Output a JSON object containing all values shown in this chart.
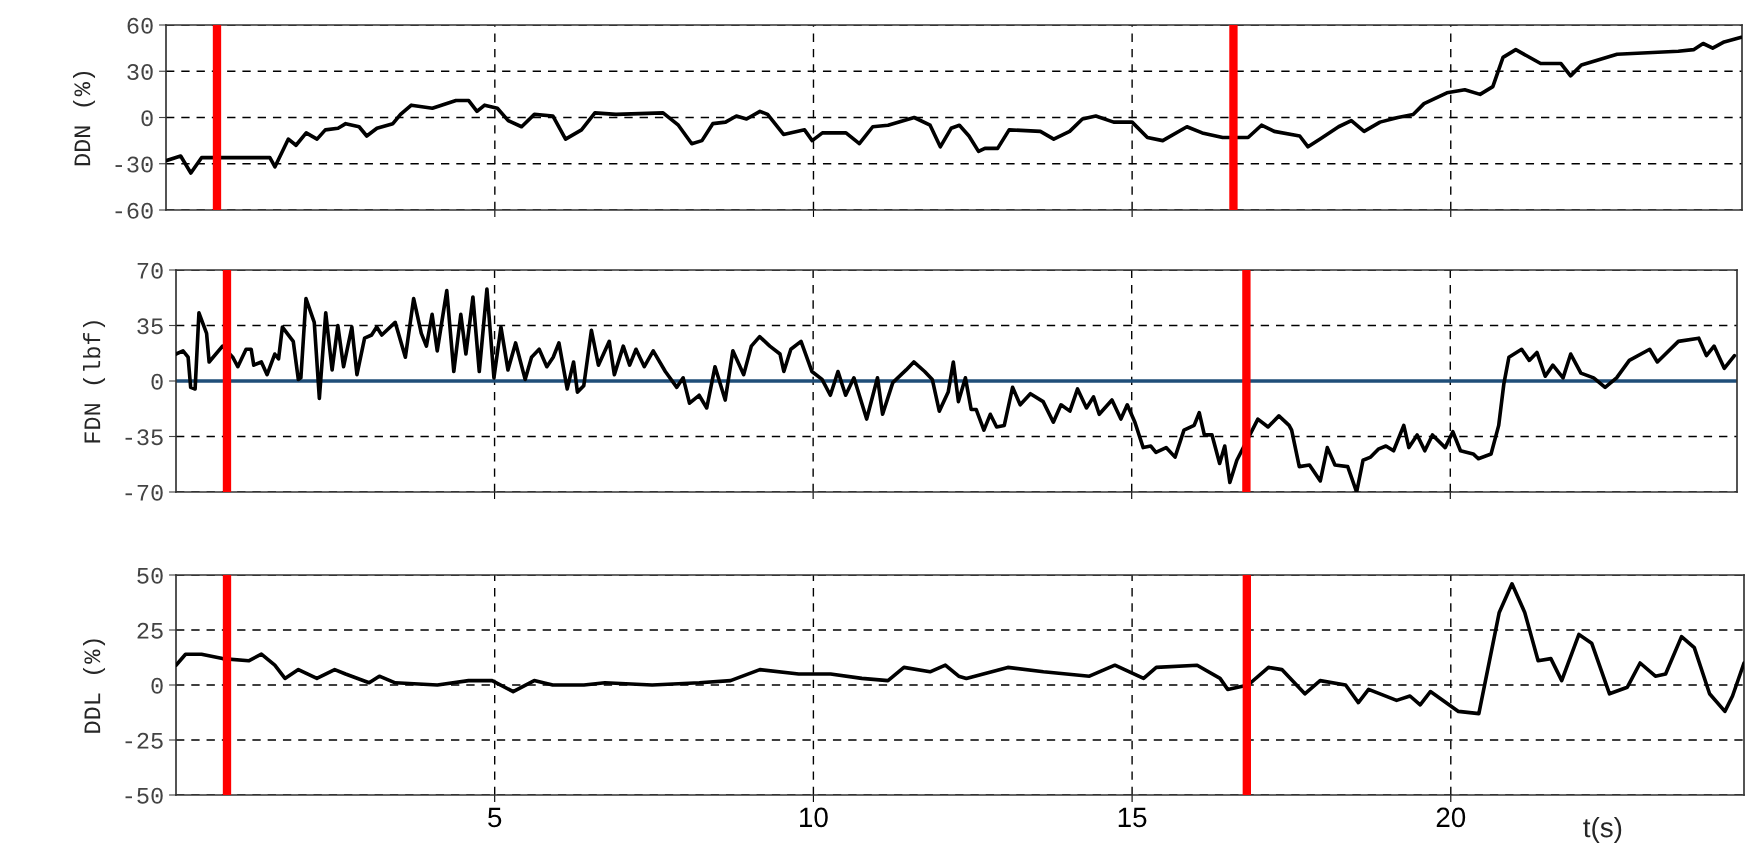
{
  "chart_data": [
    {
      "type": "line",
      "ylabel": "DDN (%)",
      "xlim": [
        -0.16,
        24.57
      ],
      "xticks": [
        5,
        10,
        15,
        20
      ],
      "ylim": [
        -60,
        60
      ],
      "yticks": [
        -60,
        -30,
        0,
        30,
        60
      ],
      "grid": true,
      "tick_labels": "y",
      "legend": false,
      "ref_lines": [
        {
          "axis": "x",
          "value": 0.64,
          "color": "#ff0000"
        },
        {
          "axis": "x",
          "value": 16.59,
          "color": "#ff0000"
        }
      ],
      "series": [
        {
          "color": "#000000",
          "x": [
            -0.16,
            0.07,
            0.23,
            0.4,
            0.89,
            1.47,
            1.55,
            1.76,
            1.88,
            2.04,
            2.21,
            2.34,
            2.54,
            2.66,
            2.87,
            2.99,
            3.15,
            3.4,
            3.52,
            3.69,
            4.02,
            4.39,
            4.59,
            4.72,
            4.84,
            5.04,
            5.21,
            5.42,
            5.62,
            5.91,
            6.11,
            6.36,
            6.57,
            6.9,
            7.64,
            7.88,
            8.09,
            8.25,
            8.42,
            8.62,
            8.79,
            8.95,
            9.16,
            9.28,
            9.53,
            9.86,
            9.98,
            10.14,
            10.51,
            10.72,
            10.93,
            11.17,
            11.58,
            11.83,
            11.99,
            12.16,
            12.29,
            12.44,
            12.59,
            12.69,
            12.89,
            13.07,
            13.56,
            13.77,
            14.02,
            14.22,
            14.43,
            14.71,
            15.0,
            15.24,
            15.48,
            15.86,
            16.1,
            16.42,
            16.82,
            17.03,
            17.23,
            17.63,
            17.76,
            17.95,
            18.24,
            18.44,
            18.64,
            18.89,
            19.17,
            19.41,
            19.58,
            19.94,
            20.22,
            20.46,
            20.66,
            20.82,
            21.02,
            21.41,
            21.73,
            21.88,
            22.05,
            22.61,
            23.57,
            23.81,
            23.96,
            24.11,
            24.29,
            24.56
          ],
          "values": [
            -28,
            -25,
            -36,
            -26,
            -26,
            -26,
            -32,
            -14,
            -18,
            -10,
            -14,
            -8,
            -7,
            -4,
            -6,
            -12,
            -7,
            -4,
            2,
            8,
            6,
            11,
            11,
            4,
            8,
            6,
            -2,
            -6,
            2,
            1,
            -14,
            -8,
            3,
            2,
            3,
            -5,
            -17,
            -15,
            -4,
            -3,
            1,
            -1,
            4,
            2,
            -11,
            -8,
            -15,
            -10,
            -10,
            -17,
            -6,
            -5,
            0,
            -5,
            -19,
            -7,
            -5,
            -12,
            -22,
            -20,
            -20,
            -8,
            -9,
            -14,
            -9,
            -1,
            1,
            -3,
            -3,
            -13,
            -15,
            -6,
            -10,
            -13,
            -13,
            -5,
            -9,
            -12,
            -19,
            -14,
            -6,
            -2,
            -9,
            -3,
            0,
            2,
            9,
            16,
            18,
            15,
            20,
            39,
            44,
            35,
            35,
            27,
            34,
            41,
            43,
            44,
            48,
            45,
            49,
            52
          ]
        }
      ]
    },
    {
      "type": "line",
      "ylabel": "FDN (lbf)",
      "xlim": [
        0,
        24.5
      ],
      "xticks": [
        5,
        10,
        15,
        20
      ],
      "ylim": [
        -70,
        70
      ],
      "yticks": [
        -70,
        -35,
        0,
        35,
        70
      ],
      "grid": true,
      "tick_labels": "y",
      "legend": false,
      "ref_lines": [
        {
          "axis": "y",
          "value": 0,
          "color": "#1f4e79"
        },
        {
          "axis": "x",
          "value": 0.8,
          "color": "#ff0000"
        },
        {
          "axis": "x",
          "value": 16.8,
          "color": "#ff0000"
        }
      ],
      "series": [
        {
          "color": "#000000",
          "x": [
            0,
            0.11,
            0.19,
            0.23,
            0.3,
            0.36,
            0.48,
            0.52,
            0.73,
            0.89,
            0.97,
            1.1,
            1.18,
            1.22,
            1.34,
            1.43,
            1.55,
            1.61,
            1.67,
            1.84,
            1.92,
            1.96,
            2.04,
            2.17,
            2.25,
            2.35,
            2.45,
            2.54,
            2.63,
            2.76,
            2.84,
            2.96,
            3.07,
            3.15,
            3.23,
            3.44,
            3.6,
            3.73,
            3.85,
            3.93,
            4.02,
            4.1,
            4.25,
            4.36,
            4.47,
            4.55,
            4.66,
            4.76,
            4.88,
            4.99,
            5.1,
            5.21,
            5.33,
            5.48,
            5.58,
            5.7,
            5.82,
            5.92,
            6.01,
            6.14,
            6.24,
            6.3,
            6.4,
            6.52,
            6.63,
            6.8,
            6.88,
            7.02,
            7.12,
            7.22,
            7.35,
            7.49,
            7.68,
            7.86,
            7.96,
            8.06,
            8.21,
            8.33,
            8.46,
            8.62,
            8.74,
            8.91,
            9.03,
            9.16,
            9.32,
            9.48,
            9.54,
            9.65,
            9.81,
            9.98,
            10.14,
            10.27,
            10.39,
            10.51,
            10.64,
            10.84,
            11.01,
            11.09,
            11.25,
            11.46,
            11.58,
            11.75,
            11.87,
            11.98,
            12.12,
            12.2,
            12.28,
            12.39,
            12.48,
            12.56,
            12.68,
            12.78,
            12.88,
            13.0,
            13.13,
            13.25,
            13.41,
            13.61,
            13.77,
            13.89,
            14.03,
            14.15,
            14.29,
            14.4,
            14.49,
            14.69,
            14.83,
            14.93,
            15.05,
            15.18,
            15.3,
            15.38,
            15.54,
            15.68,
            15.82,
            15.98,
            16.06,
            16.14,
            16.26,
            16.38,
            16.46,
            16.54,
            16.65,
            16.82,
            16.98,
            17.14,
            17.31,
            17.47,
            17.51,
            17.63,
            17.79,
            17.96,
            18.07,
            18.19,
            18.39,
            18.53,
            18.63,
            18.75,
            18.87,
            18.99,
            19.11,
            19.27,
            19.35,
            19.48,
            19.6,
            19.72,
            19.92,
            20.04,
            20.16,
            20.36,
            20.44,
            20.64,
            20.76,
            20.84,
            20.92,
            21.12,
            21.24,
            21.36,
            21.49,
            21.61,
            21.77,
            21.89,
            22.05,
            22.25,
            22.43,
            22.61,
            22.81,
            23.13,
            23.25,
            23.58,
            23.9,
            24.02,
            24.14,
            24.3,
            24.46
          ],
          "values": [
            17,
            19,
            15,
            -4,
            -5,
            43,
            30,
            12,
            22,
            15,
            9,
            20,
            20,
            10,
            12,
            4,
            17,
            14,
            34,
            25,
            1,
            2,
            52,
            37,
            -11,
            43,
            7,
            35,
            9,
            34,
            4,
            27,
            29,
            34,
            29,
            37,
            15,
            52,
            30,
            22,
            42,
            19,
            57,
            6,
            42,
            17,
            53,
            6,
            58,
            2,
            34,
            7,
            24,
            1,
            15,
            20,
            9,
            15,
            24,
            -5,
            12,
            -7,
            -3,
            32,
            10,
            25,
            4,
            22,
            10,
            20,
            9,
            19,
            6,
            -4,
            2,
            -14,
            -9,
            -17,
            9,
            -12,
            19,
            4,
            22,
            28,
            22,
            17,
            6,
            20,
            25,
            6,
            1,
            -9,
            6,
            -9,
            2,
            -24,
            2,
            -21,
            -1,
            7,
            12,
            6,
            1,
            -19,
            -7,
            12,
            -13,
            2,
            -18,
            -18,
            -31,
            -21,
            -29,
            -28,
            -4,
            -15,
            -8,
            -13,
            -26,
            -15,
            -19,
            -5,
            -17,
            -10,
            -21,
            -12,
            -24,
            -15,
            -26,
            -42,
            -41,
            -45,
            -42,
            -48,
            -31,
            -28,
            -20,
            -34,
            -34,
            -52,
            -41,
            -64,
            -50,
            null,
            -24,
            -29,
            -22,
            -28,
            -31,
            -54,
            -53,
            -63,
            -42,
            -53,
            -54,
            -70,
            -50,
            -48,
            -43,
            -41,
            -44,
            -28,
            -42,
            -34,
            -44,
            -34,
            -42,
            -32,
            -44,
            -46,
            -49,
            -46,
            -28,
            -2,
            15,
            20,
            13,
            18,
            3,
            10,
            2,
            17,
            5,
            2,
            -4,
            2,
            13,
            20,
            12,
            25,
            27,
            16,
            22,
            8,
            16
          ]
        }
      ]
    },
    {
      "type": "line",
      "ylabel": "DDL (%)",
      "xlabel": "t(s)",
      "xlim": [
        0,
        24.6
      ],
      "xticks": [
        5,
        10,
        15,
        20
      ],
      "ylim": [
        -50,
        50
      ],
      "yticks": [
        -50,
        -25,
        0,
        25,
        50
      ],
      "grid": true,
      "legend": false,
      "ref_lines": [
        {
          "axis": "x",
          "value": 0.8,
          "color": "#ff0000"
        },
        {
          "axis": "x",
          "value": 16.8,
          "color": "#ff0000"
        }
      ],
      "series": [
        {
          "color": "#000000",
          "x": [
            0,
            0.15,
            0.4,
            0.73,
            1.14,
            1.34,
            1.55,
            1.71,
            1.92,
            2.21,
            2.49,
            2.66,
            3.03,
            3.19,
            3.44,
            4.1,
            4.59,
            4.96,
            5.29,
            5.62,
            5.91,
            6.4,
            6.73,
            7.47,
            8.21,
            8.7,
            9.16,
            9.77,
            10.27,
            10.76,
            11.17,
            11.42,
            11.83,
            12.07,
            12.28,
            12.4,
            13.05,
            13.61,
            14.33,
            14.73,
            15.18,
            15.38,
            16.02,
            16.38,
            16.5,
            16.82,
            17.14,
            17.35,
            17.71,
            17.95,
            18.35,
            18.55,
            18.71,
            19.15,
            19.36,
            19.52,
            19.68,
            20.12,
            20.44,
            20.76,
            20.96,
            21.16,
            21.37,
            21.57,
            21.74,
            22.01,
            22.21,
            22.49,
            22.77,
            22.97,
            23.21,
            23.37,
            23.62,
            23.82,
            24.06,
            24.3,
            24.42,
            24.6
          ],
          "values": [
            9,
            14,
            14,
            12,
            11,
            14,
            9,
            3,
            7,
            3,
            7,
            5,
            1,
            4,
            1,
            0,
            2,
            2,
            -3,
            2,
            0,
            0,
            1,
            0,
            1,
            2,
            7,
            5,
            5,
            3,
            2,
            8,
            6,
            9,
            4,
            3,
            8,
            6,
            4,
            9,
            3,
            8,
            9,
            3,
            -2,
            0,
            8,
            7,
            -4,
            2,
            0,
            -8,
            -2,
            -7,
            -5,
            -9,
            -3,
            -12,
            -13,
            33,
            46,
            33,
            11,
            12,
            2,
            23,
            19,
            -4,
            -1,
            10,
            4,
            5,
            22,
            17,
            -4,
            -12,
            -5,
            10
          ]
        }
      ]
    }
  ]
}
